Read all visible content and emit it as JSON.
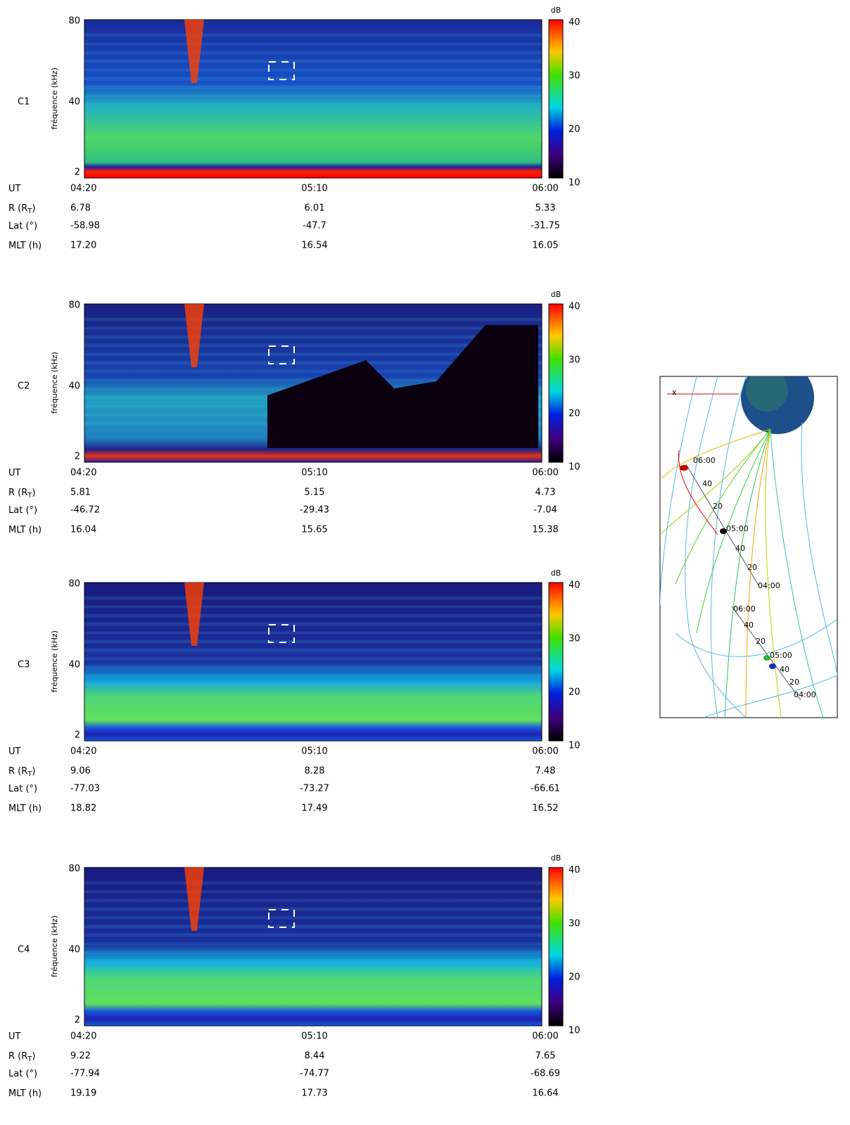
{
  "panels": [
    {
      "label": "C1",
      "label_color": "#000000",
      "y_label": "fréquence (kHz)",
      "yticks": [
        "80",
        "40",
        "2"
      ],
      "colorbar_unit": "dB",
      "colorbar_ticks": [
        "40",
        "30",
        "20",
        "10"
      ],
      "rows": [
        {
          "label": [
            "UT"
          ],
          "values": [
            "04:20",
            "05:10",
            "06:00"
          ]
        },
        {
          "label": [
            "R (R",
            "T",
            ")"
          ],
          "values": [
            "6.78",
            "6.01",
            "5.33"
          ]
        },
        {
          "label": [
            "Lat (°)"
          ],
          "values": [
            "-58.98",
            "-47.7",
            "-31.75"
          ]
        },
        {
          "label": [
            "MLT (h)"
          ],
          "values": [
            "17.20",
            "16.54",
            "16.05"
          ]
        }
      ]
    },
    {
      "label": "C2",
      "label_color": "#e00000",
      "y_label": "fréquence (kHz)",
      "yticks": [
        "80",
        "40",
        "2"
      ],
      "colorbar_unit": "dB",
      "colorbar_ticks": [
        "40",
        "30",
        "20",
        "10"
      ],
      "rows": [
        {
          "label": [
            "UT"
          ],
          "values": [
            "04:20",
            "05:10",
            "06:00"
          ]
        },
        {
          "label": [
            "R (R",
            "T",
            ")"
          ],
          "values": [
            "5.81",
            "5.15",
            "4.73"
          ]
        },
        {
          "label": [
            "Lat (°)"
          ],
          "values": [
            "-46.72",
            "-29.43",
            "-7.04"
          ]
        },
        {
          "label": [
            "MLT (h)"
          ],
          "values": [
            "16.04",
            "15.65",
            "15.38"
          ]
        }
      ]
    },
    {
      "label": "C3",
      "label_color": "#00c8a8",
      "y_label": "fréquence (kHz)",
      "yticks": [
        "80",
        "40",
        "2"
      ],
      "colorbar_unit": "dB",
      "colorbar_ticks": [
        "40",
        "30",
        "20",
        "10"
      ],
      "rows": [
        {
          "label": [
            "UT"
          ],
          "values": [
            "04:20",
            "05:10",
            "06:00"
          ]
        },
        {
          "label": [
            "R (R",
            "T",
            ")"
          ],
          "values": [
            "9.06",
            "8.28",
            "7.48"
          ]
        },
        {
          "label": [
            "Lat (°)"
          ],
          "values": [
            "-77.03",
            "-73.27",
            "-66.61"
          ]
        },
        {
          "label": [
            "MLT (h)"
          ],
          "values": [
            "18.82",
            "17.49",
            "16.52"
          ]
        }
      ]
    },
    {
      "label": "C4",
      "label_color": "#0000e0",
      "y_label": "fréquence (kHz)",
      "yticks": [
        "80",
        "40",
        "2"
      ],
      "colorbar_unit": "dB",
      "colorbar_ticks": [
        "40",
        "30",
        "20",
        "10"
      ],
      "rows": [
        {
          "label": [
            "UT"
          ],
          "values": [
            "04:20",
            "05:10",
            "06:00"
          ]
        },
        {
          "label": [
            "R (R",
            "T",
            ")"
          ],
          "values": [
            "9.22",
            "8.44",
            "7.65"
          ]
        },
        {
          "label": [
            "Lat (°)"
          ],
          "values": [
            "-77.94",
            "-74.77",
            "-68.69"
          ]
        },
        {
          "label": [
            "MLT (h)"
          ],
          "values": [
            "19.19",
            "17.73",
            "16.64"
          ]
        }
      ]
    }
  ],
  "orbit": {
    "axis_label": "x",
    "labels": [
      "06:00",
      "40",
      "20",
      "05:00",
      "40",
      "20",
      "04:00",
      "06:00",
      "40",
      "20",
      "05:00",
      "40",
      "20",
      "04:00"
    ]
  }
}
